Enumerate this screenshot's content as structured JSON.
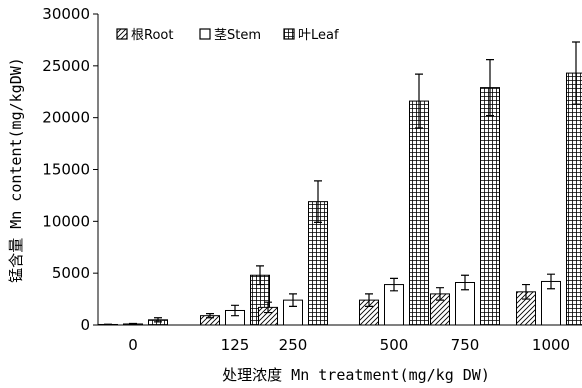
{
  "chart_data": {
    "type": "bar",
    "xlabel": "处理浓度 Mn treatment(mg/kg DW)",
    "ylabel": "锰含量 Mn content(mg/kgDW)",
    "categories": [
      "0",
      "125",
      "250",
      "500",
      "750",
      "1000"
    ],
    "ylim": [
      0,
      30000
    ],
    "yticks": [
      "0",
      "5000",
      "10000",
      "15000",
      "20000",
      "25000",
      "30000"
    ],
    "grid": false,
    "legend_position": "top-left",
    "series": [
      {
        "name": "根Root",
        "pattern": "diagonal-hatch",
        "values": [
          50,
          900,
          1700,
          2400,
          3000,
          3200
        ],
        "errors": [
          30,
          200,
          500,
          600,
          600,
          700
        ]
      },
      {
        "name": "茎Stem",
        "pattern": "white",
        "values": [
          100,
          1400,
          2400,
          3900,
          4100,
          4200
        ],
        "errors": [
          50,
          500,
          600,
          600,
          700,
          700
        ]
      },
      {
        "name": "叶Leaf",
        "pattern": "grid-hatch",
        "values": [
          500,
          4800,
          11900,
          21600,
          22900,
          24300
        ],
        "errors": [
          200,
          900,
          2000,
          2600,
          2700,
          3000
        ]
      }
    ]
  }
}
